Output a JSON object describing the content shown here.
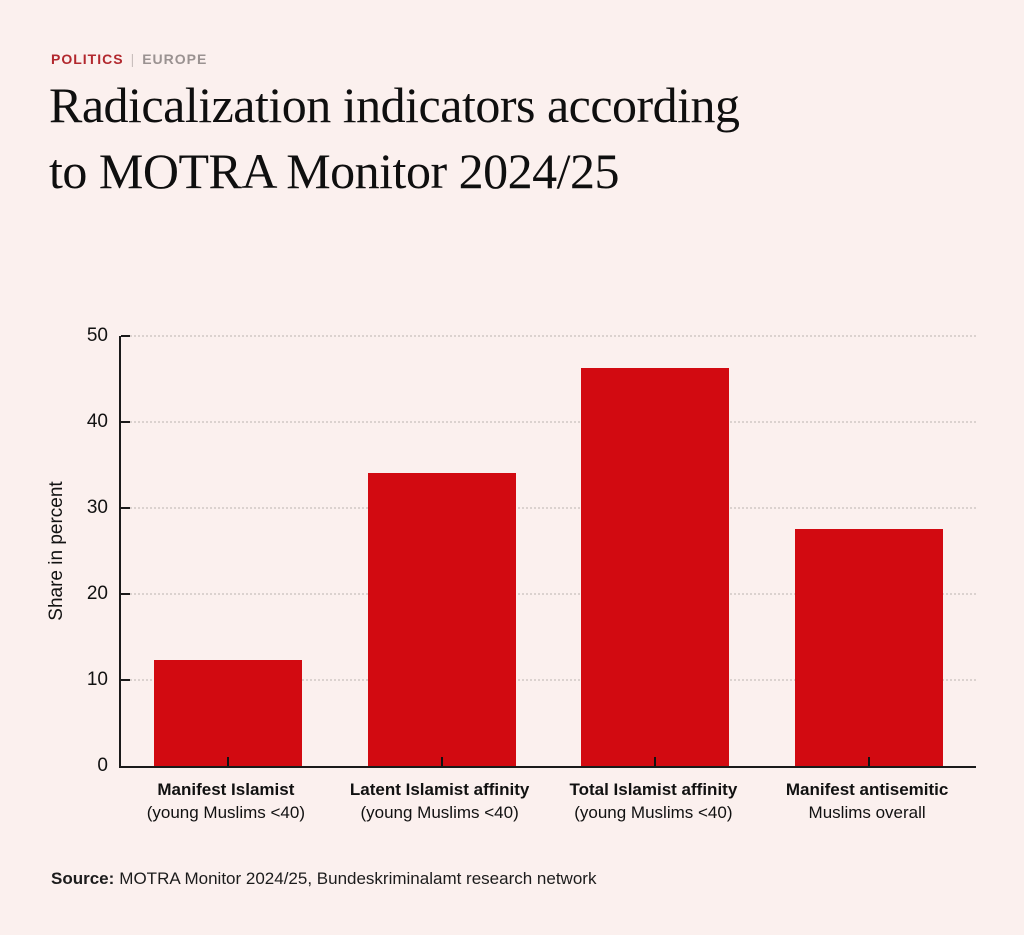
{
  "breadcrumb": {
    "category": "POLITICS",
    "separator": "|",
    "region": "EUROPE"
  },
  "title": {
    "line1": "Radicalization indicators according",
    "line2": "to MOTRA Monitor 2024/25"
  },
  "source": {
    "label": "Source:",
    "text": "MOTRA Monitor 2024/25, Bundeskriminalamt research network"
  },
  "chart_data": {
    "type": "bar",
    "title": "Radicalization indicators according to MOTRA Monitor 2024/25",
    "xlabel": "",
    "ylabel": "Share in percent",
    "ylim": [
      0,
      50
    ],
    "yticks": [
      0,
      10,
      20,
      30,
      40,
      50
    ],
    "grid": "horizontal-dotted",
    "legend": "none",
    "bar_color": "#d20a11",
    "categories": [
      "Manifest Islamist",
      "Latent Islamist affinity",
      "Total Islamist affinity",
      "Manifest antisemitic"
    ],
    "category_sublabels": [
      "(young Muslims <40)",
      "(young Muslims <40)",
      "(young Muslims <40)",
      "Muslims overall"
    ],
    "values": [
      12.3,
      34.1,
      46.3,
      27.6
    ]
  }
}
